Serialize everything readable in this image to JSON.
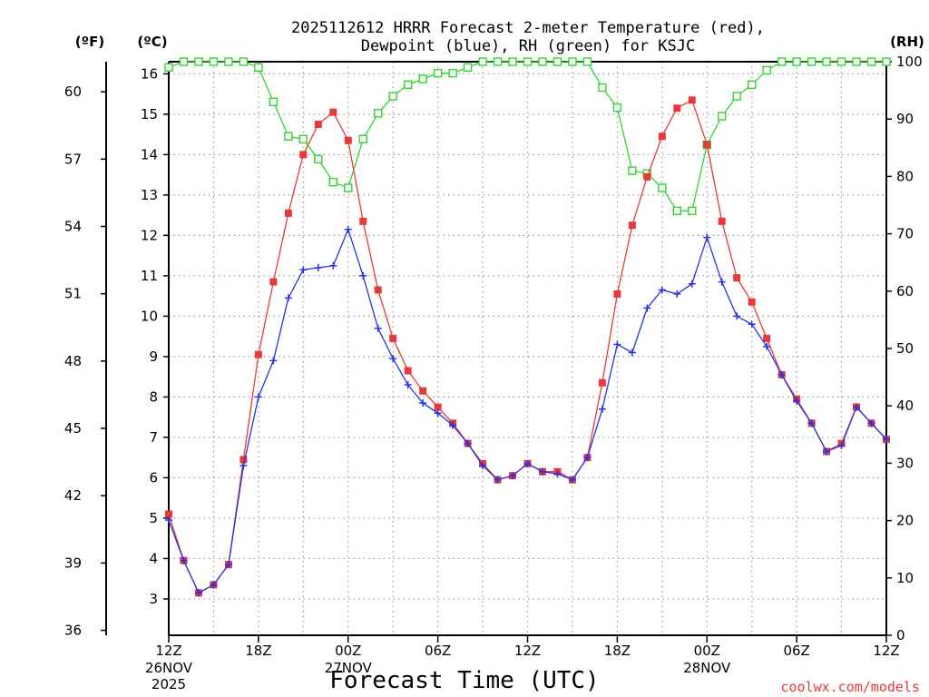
{
  "header": {
    "title_line1": "2025112612 HRRR Forecast 2-meter Temperature (red),",
    "title_line2": "Dewpoint (blue), RH (green) for KSJC"
  },
  "axes": {
    "unit_f": "(ºF)",
    "unit_c": "(ºC)",
    "unit_rh": "(RH)",
    "xlabel": "Forecast Time (UTC)",
    "f_ticks": [
      "36",
      "39",
      "42",
      "45",
      "48",
      "51",
      "54",
      "57",
      "60"
    ],
    "c_ticks": [
      "3",
      "4",
      "5",
      "6",
      "7",
      "8",
      "9",
      "10",
      "11",
      "12",
      "13",
      "14",
      "15",
      "16"
    ],
    "rh_ticks": [
      "0",
      "10",
      "20",
      "30",
      "40",
      "50",
      "60",
      "70",
      "80",
      "90",
      "100"
    ],
    "x_ticks": [
      {
        "label": "12Z",
        "date": "26NOV",
        "year": "2025"
      },
      {
        "label": "18Z",
        "date": "",
        "year": ""
      },
      {
        "label": "00Z",
        "date": "27NOV",
        "year": ""
      },
      {
        "label": "06Z",
        "date": "",
        "year": ""
      },
      {
        "label": "12Z",
        "date": "",
        "year": ""
      },
      {
        "label": "18Z",
        "date": "",
        "year": ""
      },
      {
        "label": "00Z",
        "date": "28NOV",
        "year": ""
      },
      {
        "label": "06Z",
        "date": "",
        "year": ""
      },
      {
        "label": "12Z",
        "date": "",
        "year": ""
      }
    ]
  },
  "footer": {
    "credit": "coolwx.com/models"
  },
  "colors": {
    "temp": "#e8393a",
    "dewpoint": "#2632e6",
    "rh": "#2fd52f",
    "credit": "#e8393a",
    "grid": "#9a9a9a"
  },
  "chart_data": {
    "type": "line",
    "title": "2025112612 HRRR Forecast 2-meter Temperature (red), Dewpoint (blue), RH (green) for KSJC",
    "xlabel": "Forecast Time (UTC)",
    "x_unit": "forecast hour",
    "x_range": [
      0,
      48
    ],
    "y_left_c": [
      2.1,
      16.3
    ],
    "y_left_f": [
      36,
      61
    ],
    "y_right_rh": [
      0,
      100
    ],
    "series": [
      {
        "name": "2-meter Temperature",
        "unit": "C",
        "axis": "left",
        "values": [
          5.1,
          3.95,
          3.15,
          3.35,
          3.85,
          6.45,
          9.05,
          10.85,
          12.55,
          14.0,
          14.75,
          15.05,
          14.35,
          12.35,
          10.65,
          9.45,
          8.65,
          8.15,
          7.75,
          7.35,
          6.85,
          6.35,
          5.95,
          6.05,
          6.35,
          6.15,
          6.15,
          5.95,
          6.5,
          8.35,
          10.55,
          12.25,
          13.45,
          14.45,
          15.15,
          15.35,
          14.25,
          12.35,
          10.95,
          10.35,
          9.45,
          8.55,
          7.95,
          7.35,
          6.65,
          6.85,
          7.75,
          7.35,
          6.95
        ]
      },
      {
        "name": "Dewpoint",
        "unit": "C",
        "axis": "left",
        "values": [
          4.95,
          3.95,
          3.15,
          3.35,
          3.85,
          6.3,
          8.0,
          8.9,
          10.45,
          11.15,
          11.2,
          11.25,
          12.15,
          11.0,
          9.7,
          8.95,
          8.3,
          7.85,
          7.6,
          7.3,
          6.85,
          6.3,
          5.95,
          6.05,
          6.35,
          6.15,
          6.1,
          5.95,
          6.5,
          7.7,
          9.3,
          9.1,
          10.2,
          10.65,
          10.55,
          10.8,
          11.95,
          10.85,
          10.0,
          9.8,
          9.25,
          8.55,
          7.9,
          7.35,
          6.65,
          6.8,
          7.75,
          7.35,
          6.95
        ]
      },
      {
        "name": "RH",
        "unit": "%",
        "axis": "right",
        "values": [
          99,
          100,
          100,
          100,
          100,
          100,
          99,
          93,
          87,
          86.5,
          83,
          79,
          78,
          86.5,
          91,
          94,
          96,
          97,
          98,
          98,
          99,
          100,
          100,
          100,
          100,
          100,
          100,
          100,
          100,
          95.5,
          92,
          81,
          80.5,
          78,
          74,
          74,
          85.5,
          90.5,
          94,
          96,
          98.5,
          100,
          100,
          100,
          100,
          100,
          100,
          100,
          100
        ]
      }
    ]
  }
}
